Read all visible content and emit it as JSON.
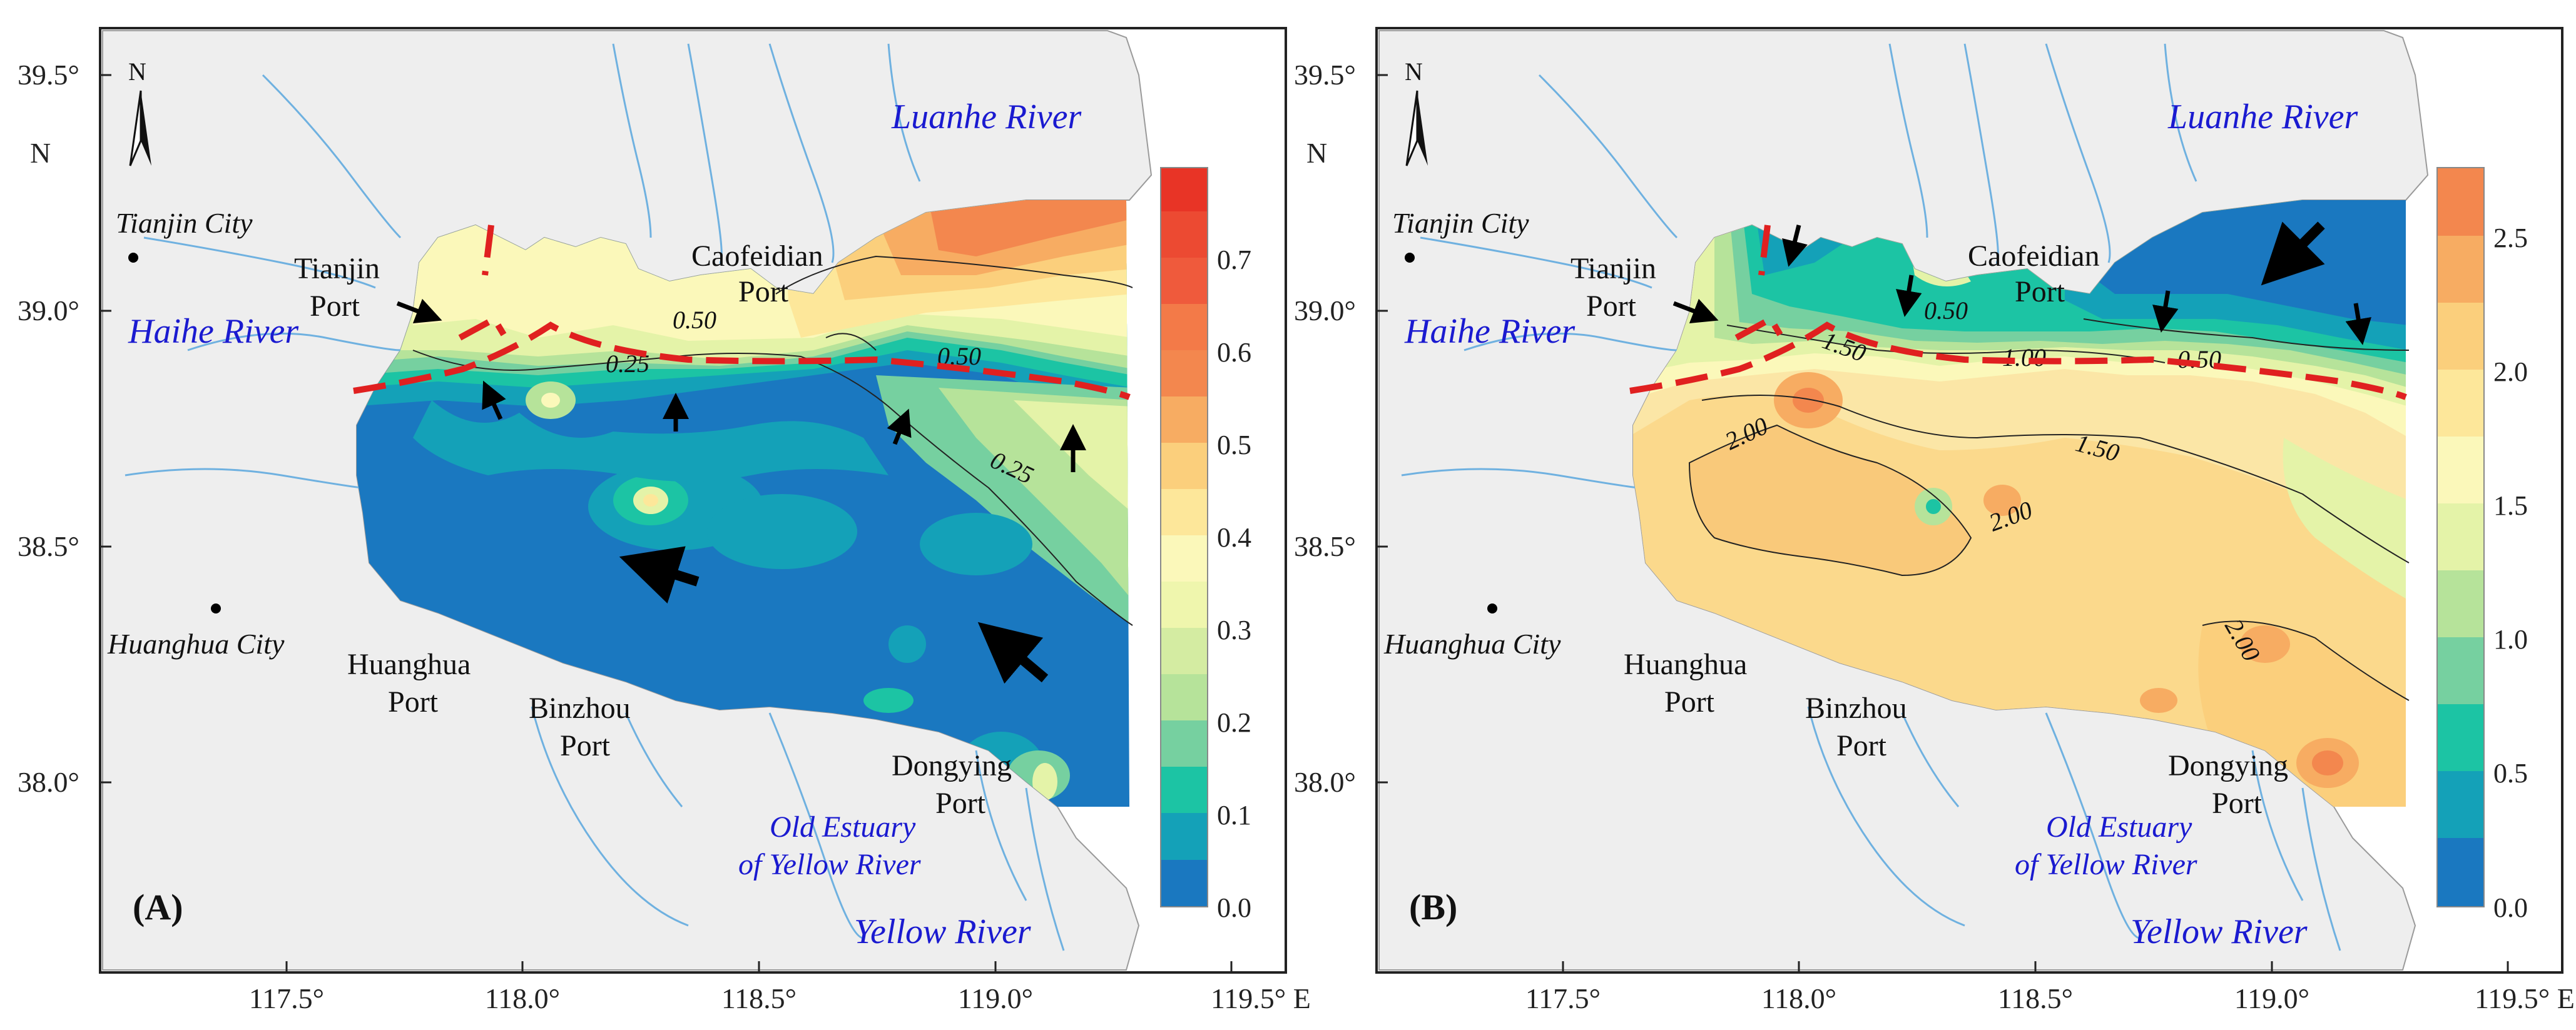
{
  "colors": {
    "land": "#eeeeee",
    "coast": "#9a9a9a",
    "river_line": "#6fb1e0",
    "dashed_divide": "#e02020",
    "river_label": "#1a1ad0",
    "scale": [
      "#1a78c0",
      "#14a1b8",
      "#1cc4a4",
      "#76d0a0",
      "#b6e39a",
      "#e4f3a8",
      "#fbf8ba",
      "#fde79a",
      "#fbcf7c",
      "#f7ac62",
      "#f3874e",
      "#ef5a3c",
      "#e83426"
    ]
  },
  "axis": {
    "x_ticks": [
      "117.5°",
      "118.0°",
      "118.5°",
      "119.0°",
      "119.5° E"
    ],
    "y_ticks": [
      "39.5°",
      "39.0°",
      "38.5°",
      "38.0°"
    ],
    "y_unit": "N"
  },
  "map_labels": {
    "north": "N",
    "tianjin_city": "Tianjin City",
    "huanghua_city": "Huanghua City",
    "tianjin_port_1": "Tianjin",
    "tianjin_port_2": "Port",
    "caofeidian_port_1": "Caofeidian",
    "caofeidian_port_2": "Port",
    "huanghua_port_1": "Huanghua",
    "huanghua_port_2": "Port",
    "binzhou_port_1": "Binzhou",
    "binzhou_port_2": "Port",
    "dongying_port_1": "Dongying",
    "dongying_port_2": "Port",
    "haihe_river": "Haihe River",
    "luanhe_river": "Luanhe River",
    "old_estuary_1": "Old Estuary",
    "old_estuary_2": "of Yellow River",
    "yellow_river": "Yellow River"
  },
  "panels": [
    {
      "label": "(A)",
      "colorbar_ticks": [
        "0.0",
        "0.1",
        "0.2",
        "0.3",
        "0.4",
        "0.5",
        "0.6",
        "0.7"
      ],
      "colorbar_range": [
        0,
        0.8
      ],
      "contour_labels": [
        "0.50",
        "0.25",
        "0.50",
        "0.25"
      ]
    },
    {
      "label": "(B)",
      "colorbar_ticks": [
        "0.0",
        "0.5",
        "1.0",
        "1.5",
        "2.0",
        "2.5"
      ],
      "colorbar_range": [
        0,
        2.75
      ],
      "contour_labels": [
        "0.50",
        "1.00",
        "1.50",
        "0.50",
        "2.00",
        "1.50",
        "2.00",
        "2.00"
      ]
    }
  ]
}
